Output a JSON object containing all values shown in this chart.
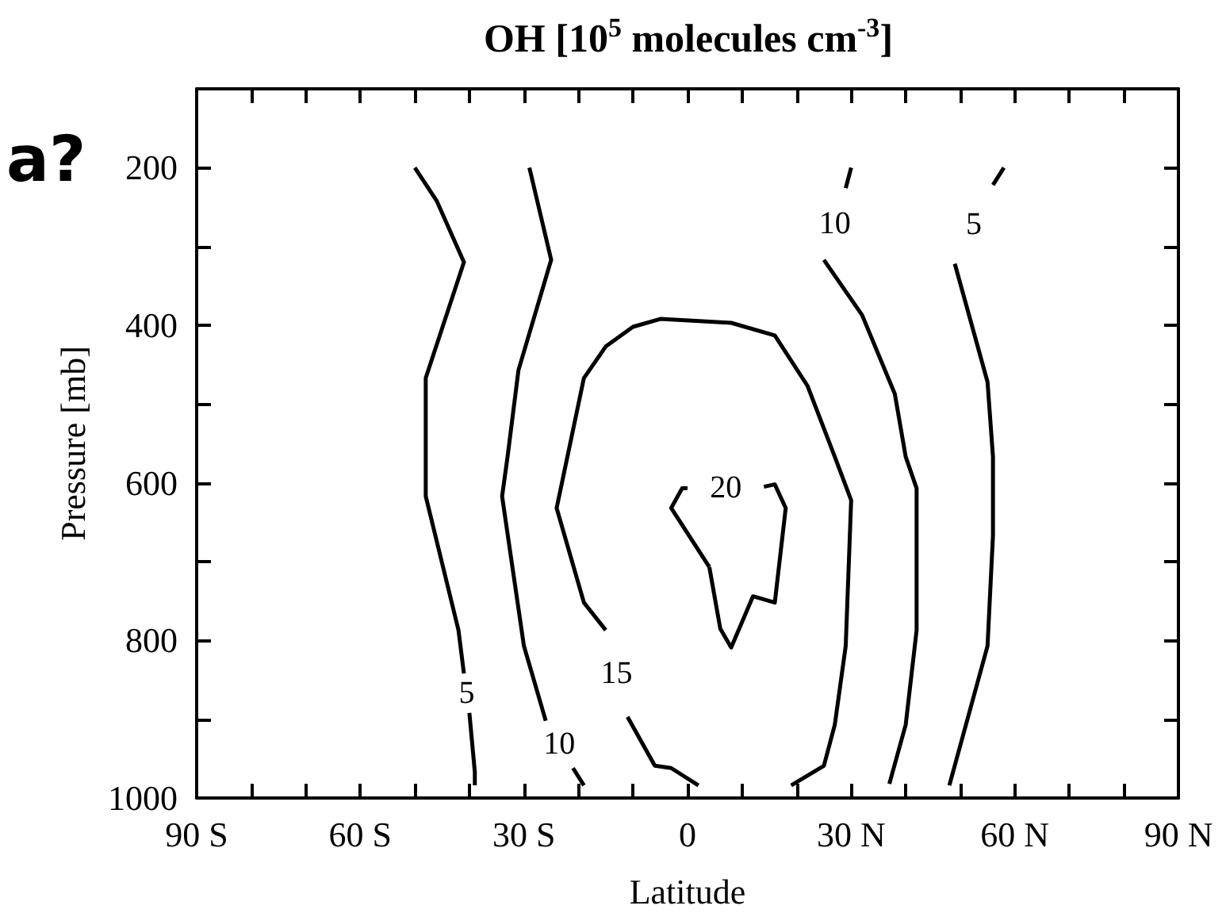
{
  "chart_data": {
    "type": "line",
    "title": "OH [10$^{5}$ molecules cm$^{-3}$]",
    "xlabel": "Latitude",
    "ylabel": "Pressure [mb]",
    "annotations": [
      "a?"
    ],
    "xlim": [
      -90,
      90
    ],
    "ylim": [
      1000,
      100
    ],
    "xticks": [
      {
        "value": -90,
        "label": "90 S"
      },
      {
        "value": -80,
        "label": null
      },
      {
        "value": -70,
        "label": null
      },
      {
        "value": -60,
        "label": "60 S"
      },
      {
        "value": -50,
        "label": null
      },
      {
        "value": -40,
        "label": null
      },
      {
        "value": -30,
        "label": "30 S"
      },
      {
        "value": -20,
        "label": null
      },
      {
        "value": -10,
        "label": null
      },
      0,
      {
        "value": 10,
        "label": null
      },
      {
        "value": 20,
        "label": null
      },
      {
        "value": 30,
        "label": "30 N"
      },
      {
        "value": 40,
        "label": null
      },
      {
        "value": 50,
        "label": null
      },
      {
        "value": 60,
        "label": "60 N"
      },
      {
        "value": 70,
        "label": null
      },
      {
        "value": 80,
        "label": null
      },
      {
        "value": 90,
        "label": "90 N"
      }
    ],
    "yticks": [
      {
        "value": 100,
        "label": null
      },
      200,
      {
        "value": 300,
        "label": null
      },
      400,
      {
        "value": 500,
        "label": null
      },
      600,
      {
        "value": 700,
        "label": null
      },
      800,
      {
        "value": 900,
        "label": null
      },
      1000
    ],
    "series": [
      {
        "name": "5",
        "color": "#000000",
        "x": [
          -50,
          -46,
          -41,
          -48,
          -48,
          -48,
          -42,
          -41,
          null,
          -40,
          -39,
          -39
        ],
        "values": [
          200,
          242,
          320,
          467,
          567,
          617,
          787,
          842,
          null,
          892,
          967,
          984
        ]
      },
      {
        "name": "10",
        "color": "#000000",
        "x": [
          -29,
          -25,
          -31,
          -33,
          -34,
          -30,
          -26,
          null,
          -21,
          -19
        ],
        "values": [
          200,
          317,
          457,
          567,
          617,
          807,
          902,
          null,
          962,
          984
        ]
      },
      {
        "name": "15",
        "color": "#000000",
        "x": [
          19,
          25,
          27,
          29,
          30,
          27,
          22,
          16,
          8,
          -5,
          -10,
          -15,
          -19,
          -24,
          -19,
          -15,
          null,
          -11,
          -6,
          -3,
          2
        ],
        "values": [
          984,
          959,
          907,
          807,
          622,
          567,
          477,
          413,
          397,
          392,
          402,
          427,
          467,
          632,
          752,
          787,
          null,
          897,
          959,
          962,
          984
        ]
      },
      {
        "name": "20",
        "color": "#000000",
        "x": [
          4,
          -3,
          -1,
          0,
          null,
          14,
          16,
          18,
          16,
          12,
          8,
          6,
          4
        ],
        "values": [
          707,
          632,
          607,
          607,
          null,
          605,
          602,
          632,
          752,
          744,
          809,
          785,
          707
        ]
      },
      {
        "name": "10",
        "color": "#000000",
        "x": [
          30,
          29,
          null,
          25,
          32,
          38,
          40,
          42,
          42,
          40,
          37
        ],
        "values": [
          200,
          226,
          null,
          317,
          387,
          487,
          567,
          607,
          787,
          907,
          982
        ]
      },
      {
        "name": "5",
        "color": "#000000",
        "x": [
          58,
          56,
          null,
          49,
          55,
          56,
          56,
          55,
          48
        ],
        "values": [
          200,
          222,
          null,
          322,
          472,
          567,
          667,
          807,
          984
        ]
      }
    ]
  }
}
